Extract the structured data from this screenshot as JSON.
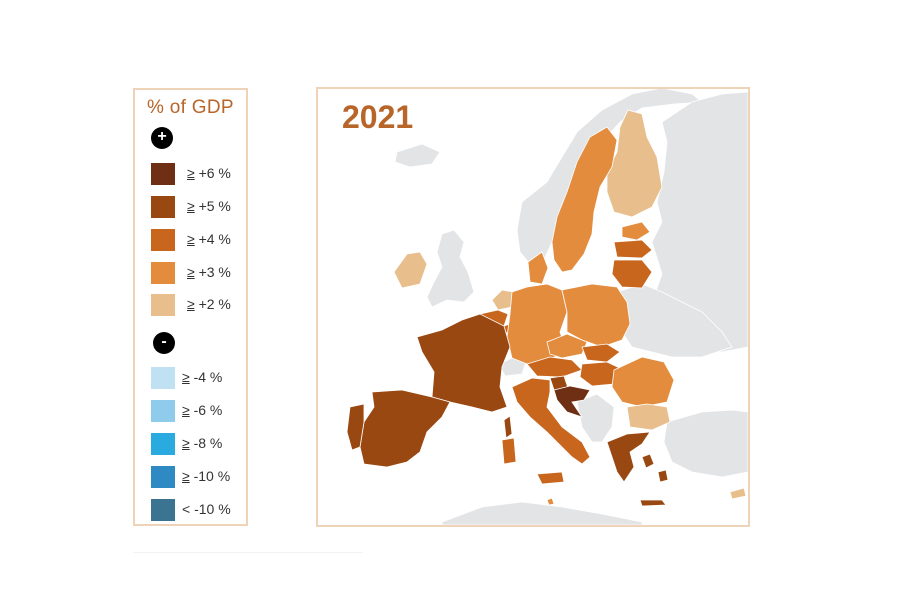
{
  "legend": {
    "title": "% of GDP",
    "positive_sign": "+",
    "negative_sign": "-",
    "positive": [
      {
        "prefix": "≥",
        "text": " +6 %",
        "color": "#6e2f14"
      },
      {
        "prefix": "≥",
        "text": " +5 %",
        "color": "#9a4812"
      },
      {
        "prefix": "≥",
        "text": " +4 %",
        "color": "#c8661e"
      },
      {
        "prefix": "≥",
        "text": " +3 %",
        "color": "#e38c3e"
      },
      {
        "prefix": "≥",
        "text": " +2 %",
        "color": "#e8be8c"
      }
    ],
    "negative": [
      {
        "prefix": "≥",
        "text": " -4 %",
        "color": "#bfe1f2"
      },
      {
        "prefix": "≥",
        "text": " -6 %",
        "color": "#8fcbea"
      },
      {
        "prefix": "≥",
        "text": " -8 %",
        "color": "#29abe0"
      },
      {
        "prefix": "≥",
        "text": " -10 %",
        "color": "#2f8ac4"
      },
      {
        "prefix": "<",
        "text": " -10 %",
        "color": "#3a7491"
      }
    ]
  },
  "map": {
    "year": "2021",
    "colors": {
      "non_eu": "#e3e4e6",
      "sea": "#ffffff",
      "border": "#ffffff"
    }
  }
}
